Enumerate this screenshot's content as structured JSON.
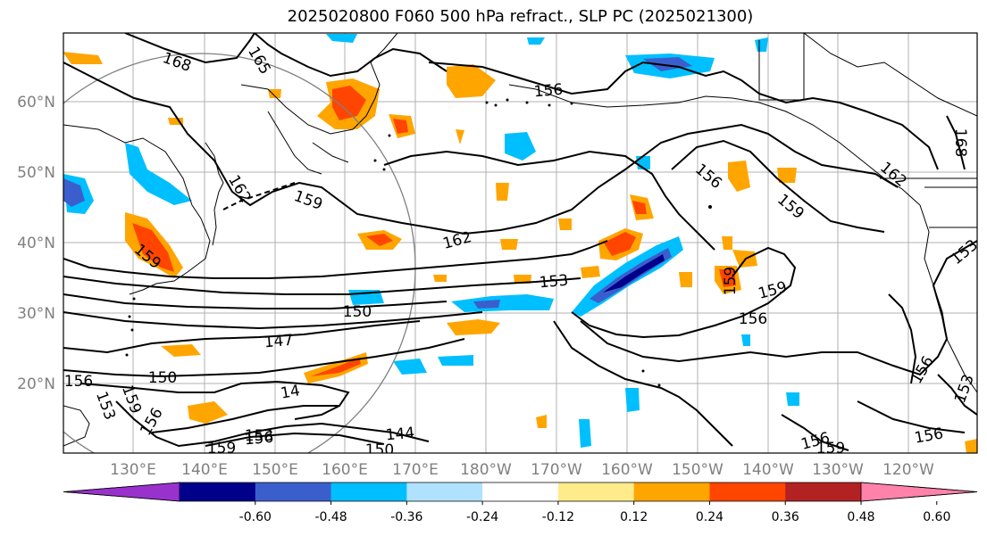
{
  "title": "2025020800 F060 500 hPa refract., SLP PC (2025021300)",
  "map": {
    "lat_labels": [
      "60°N",
      "50°N",
      "40°N",
      "30°N",
      "20°N"
    ],
    "lon_labels": [
      "130°E",
      "140°E",
      "150°E",
      "160°E",
      "170°E",
      "180°W",
      "170°W",
      "160°W",
      "150°W",
      "140°W",
      "130°W",
      "120°W"
    ],
    "contour_labels": [
      {
        "text": "168"
      },
      {
        "text": "165"
      },
      {
        "text": "156"
      },
      {
        "text": "162"
      },
      {
        "text": "159"
      },
      {
        "text": "162"
      },
      {
        "text": "156"
      },
      {
        "text": "159"
      },
      {
        "text": "162"
      },
      {
        "text": "168"
      },
      {
        "text": "159"
      },
      {
        "text": "153"
      },
      {
        "text": "150"
      },
      {
        "text": "147"
      },
      {
        "text": "150"
      },
      {
        "text": "156"
      },
      {
        "text": "159"
      },
      {
        "text": "153"
      },
      {
        "text": "14"
      },
      {
        "text": "144"
      },
      {
        "text": "150"
      },
      {
        "text": "153"
      },
      {
        "text": "156"
      },
      {
        "text": "159"
      },
      {
        "text": "159"
      },
      {
        "text": "156"
      },
      {
        "text": "159"
      },
      {
        "text": "156"
      },
      {
        "text": "153"
      },
      {
        "text": "153"
      },
      {
        "text": "156"
      },
      {
        "text": "156"
      },
      {
        "text": "159"
      },
      {
        "text": "156"
      }
    ]
  },
  "colorbar": {
    "labels": [
      "-0.60",
      "-0.48",
      "-0.36",
      "-0.24",
      "-0.12",
      "0.12",
      "0.24",
      "0.36",
      "0.48",
      "0.60"
    ],
    "colors": [
      "#9932cc",
      "#00008b",
      "#3a5fcd",
      "#00bfff",
      "#b0e2ff",
      "#ffffff",
      "#ffeb8a",
      "#ffa500",
      "#ff4500",
      "#b22222",
      "#ff82ab"
    ]
  }
}
